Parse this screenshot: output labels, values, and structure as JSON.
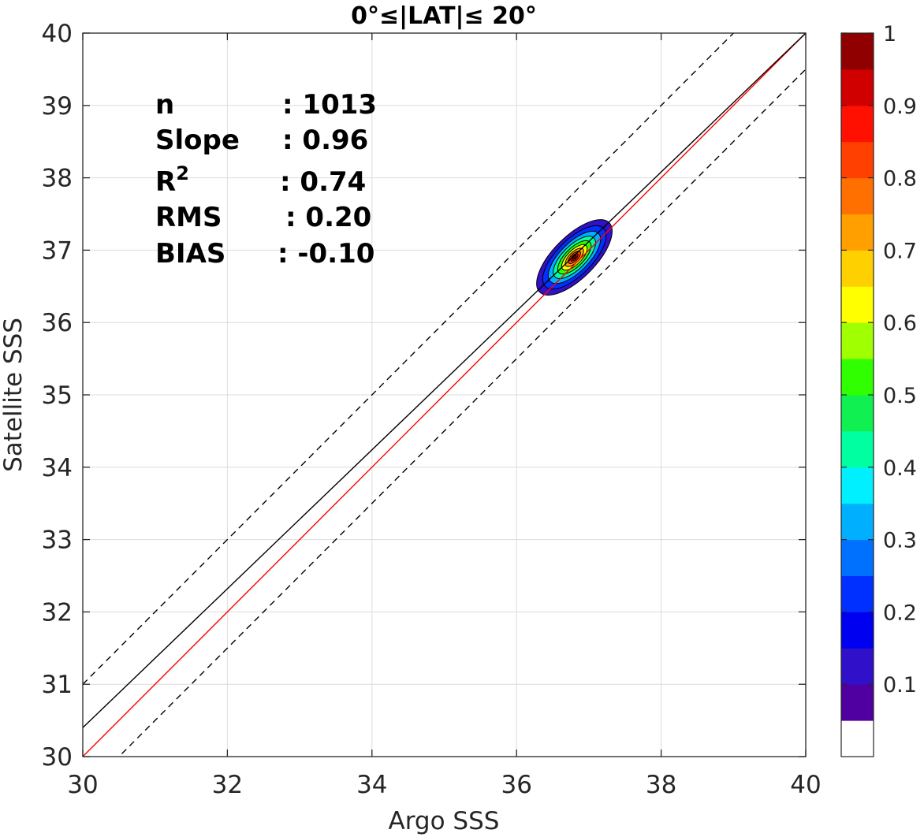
{
  "chart_data": {
    "type": "contour",
    "title": "0°≤|LAT|≤ 20°",
    "xlabel": "Argo SSS",
    "ylabel": "Satellite SSS",
    "xlim": [
      30,
      40
    ],
    "ylim": [
      30,
      40
    ],
    "xticks": [
      30,
      32,
      34,
      36,
      38,
      40
    ],
    "yticks": [
      30,
      31,
      32,
      33,
      34,
      35,
      36,
      37,
      38,
      39,
      40
    ],
    "grid": true,
    "density_peak": {
      "x": 36.8,
      "y": 36.9
    },
    "stats": [
      {
        "label": "n",
        "value": ": 1013"
      },
      {
        "label": "Slope",
        "value": ": 0.96"
      },
      {
        "label": "R",
        "sup": "2",
        "value": ": 0.74"
      },
      {
        "label": "RMS",
        "value": ": 0.20"
      },
      {
        "label": "BIAS",
        "value": ": -0.10"
      }
    ],
    "lines": [
      {
        "kind": "one-to-one",
        "color": "#ff0000",
        "style": "solid",
        "slope": 1,
        "intercept": 0
      },
      {
        "kind": "regression",
        "color": "#000000",
        "style": "solid",
        "points": [
          [
            30,
            30.4
          ],
          [
            40,
            40.0
          ]
        ]
      },
      {
        "kind": "upper-bound",
        "color": "#000000",
        "style": "dashed",
        "points": [
          [
            30,
            31.0
          ],
          [
            40,
            41.0
          ]
        ]
      },
      {
        "kind": "lower-bound",
        "color": "#000000",
        "style": "dashed",
        "points": [
          [
            30,
            29.5
          ],
          [
            40,
            39.5
          ]
        ]
      }
    ],
    "colorbar": {
      "min": 0,
      "max": 1,
      "ticks": [
        "0.1",
        "0.2",
        "0.3",
        "0.4",
        "0.5",
        "0.6",
        "0.7",
        "0.8",
        "0.9",
        "1"
      ],
      "tick_values": [
        0.1,
        0.2,
        0.3,
        0.4,
        0.5,
        0.6,
        0.7,
        0.8,
        0.9,
        1.0
      ],
      "colors": [
        "#ffffff",
        "#5000a0",
        "#3010c8",
        "#0000f0",
        "#0030ff",
        "#0070ff",
        "#00b0ff",
        "#00f0ff",
        "#00ffa0",
        "#10f050",
        "#30ff00",
        "#a0ff00",
        "#ffff00",
        "#ffd000",
        "#ffa000",
        "#ff7000",
        "#ff4000",
        "#ff1000",
        "#d00000",
        "#900000"
      ]
    },
    "contour_levels": [
      {
        "level": 0.05,
        "a": 0.68,
        "b": 0.29
      },
      {
        "level": 0.15,
        "a": 0.57,
        "b": 0.245
      },
      {
        "level": 0.25,
        "a": 0.47,
        "b": 0.2
      },
      {
        "level": 0.35,
        "a": 0.38,
        "b": 0.163
      },
      {
        "level": 0.45,
        "a": 0.3,
        "b": 0.128
      },
      {
        "level": 0.55,
        "a": 0.23,
        "b": 0.098
      },
      {
        "level": 0.65,
        "a": 0.165,
        "b": 0.072
      },
      {
        "level": 0.75,
        "a": 0.11,
        "b": 0.05
      },
      {
        "level": 0.85,
        "a": 0.065,
        "b": 0.03
      }
    ]
  }
}
